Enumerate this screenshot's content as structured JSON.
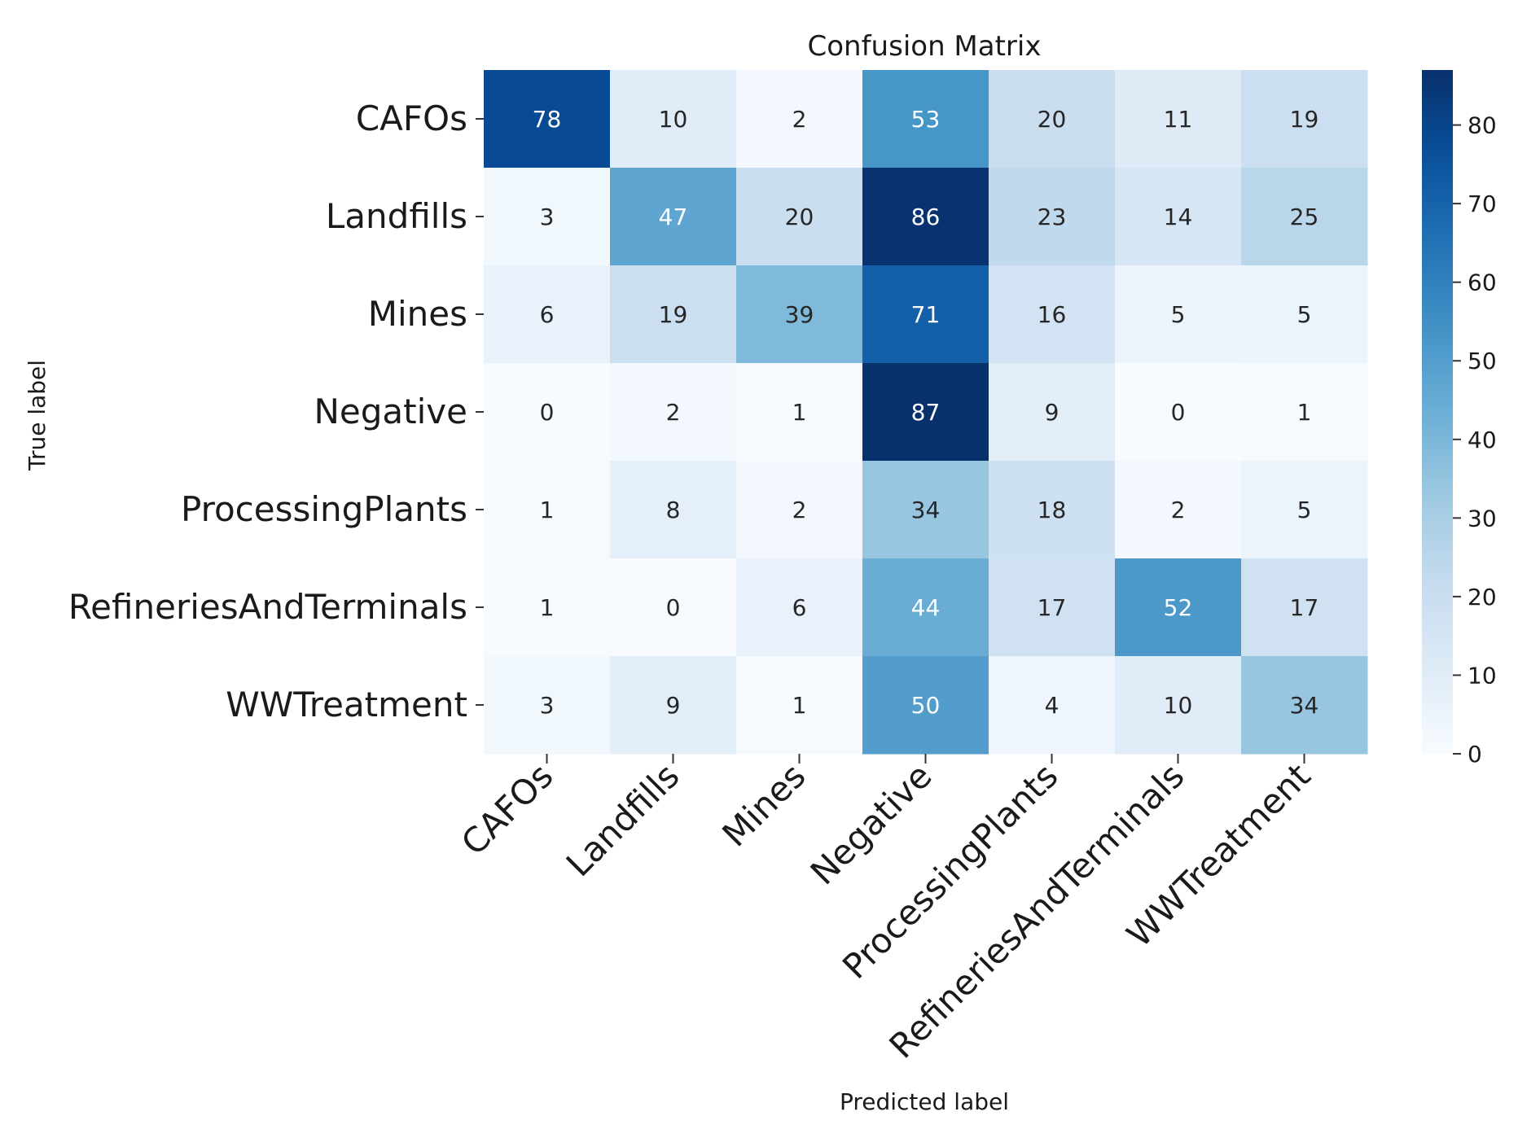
{
  "chart_data": {
    "type": "heatmap",
    "title": "Confusion Matrix",
    "xlabel": "Predicted label",
    "ylabel": "True label",
    "rows": [
      "CAFOs",
      "Landfills",
      "Mines",
      "Negative",
      "ProcessingPlants",
      "RefineriesAndTerminals",
      "WWTreatment"
    ],
    "cols": [
      "CAFOs",
      "Landfills",
      "Mines",
      "Negative",
      "ProcessingPlants",
      "RefineriesAndTerminals",
      "WWTreatment"
    ],
    "values": [
      [
        78,
        10,
        2,
        53,
        20,
        11,
        19
      ],
      [
        3,
        47,
        20,
        86,
        23,
        14,
        25
      ],
      [
        6,
        19,
        39,
        71,
        16,
        5,
        5
      ],
      [
        0,
        2,
        1,
        87,
        9,
        0,
        1
      ],
      [
        1,
        8,
        2,
        34,
        18,
        2,
        5
      ],
      [
        1,
        0,
        6,
        44,
        17,
        52,
        17
      ],
      [
        3,
        9,
        1,
        50,
        4,
        10,
        34
      ]
    ],
    "colorbar": {
      "min": 0,
      "max": 87,
      "ticks": [
        0,
        10,
        20,
        30,
        40,
        50,
        60,
        70,
        80
      ]
    },
    "colormap": "Blues",
    "colors": {
      "low": "#f7fbff",
      "high": "#08306b",
      "text_dark": "#262626",
      "text_light": "#ffffff"
    }
  }
}
